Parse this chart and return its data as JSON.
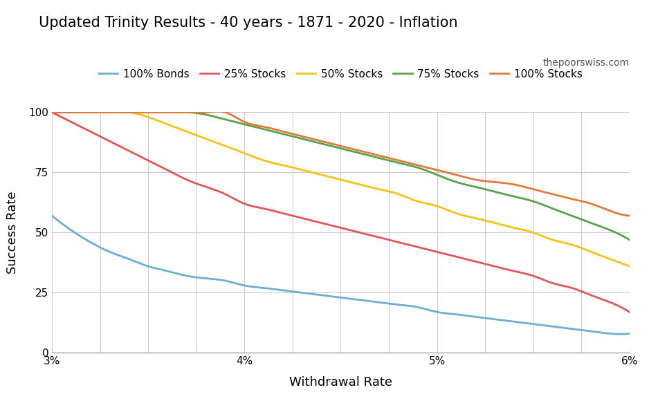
{
  "title": "Updated Trinity Results - 40 years - 1871 - 2020 - Inflation",
  "watermark": "thepoorswiss.com",
  "xlabel": "Withdrawal Rate",
  "ylabel": "Success Rate",
  "xlim": [
    3.0,
    6.0
  ],
  "ylim": [
    0,
    100
  ],
  "background_color": "#ffffff",
  "grid_color": "#cccccc",
  "series": {
    "100% Bonds": {
      "color": "#6baed6",
      "points": [
        [
          3.0,
          57
        ],
        [
          3.1,
          51
        ],
        [
          3.2,
          46
        ],
        [
          3.3,
          42
        ],
        [
          3.4,
          39
        ],
        [
          3.5,
          36
        ],
        [
          3.6,
          34
        ],
        [
          3.7,
          32
        ],
        [
          3.8,
          31
        ],
        [
          3.9,
          30
        ],
        [
          4.0,
          28
        ],
        [
          4.1,
          27
        ],
        [
          4.2,
          26
        ],
        [
          4.3,
          25
        ],
        [
          4.4,
          24
        ],
        [
          4.5,
          23
        ],
        [
          4.6,
          22
        ],
        [
          4.7,
          21
        ],
        [
          4.8,
          20
        ],
        [
          4.9,
          19
        ],
        [
          5.0,
          17
        ],
        [
          5.1,
          16
        ],
        [
          5.2,
          15
        ],
        [
          5.3,
          14
        ],
        [
          5.4,
          13
        ],
        [
          5.5,
          12
        ],
        [
          5.6,
          11
        ],
        [
          5.7,
          10
        ],
        [
          5.8,
          9
        ],
        [
          5.9,
          8
        ],
        [
          6.0,
          8
        ]
      ]
    },
    "25% Stocks": {
      "color": "#e15759",
      "points": [
        [
          3.0,
          100
        ],
        [
          3.1,
          96
        ],
        [
          3.2,
          92
        ],
        [
          3.3,
          88
        ],
        [
          3.4,
          84
        ],
        [
          3.5,
          80
        ],
        [
          3.6,
          76
        ],
        [
          3.7,
          72
        ],
        [
          3.8,
          69
        ],
        [
          3.9,
          66
        ],
        [
          4.0,
          62
        ],
        [
          4.1,
          60
        ],
        [
          4.2,
          58
        ],
        [
          4.3,
          56
        ],
        [
          4.4,
          54
        ],
        [
          4.5,
          52
        ],
        [
          4.6,
          50
        ],
        [
          4.7,
          48
        ],
        [
          4.8,
          46
        ],
        [
          4.9,
          44
        ],
        [
          5.0,
          42
        ],
        [
          5.1,
          40
        ],
        [
          5.2,
          38
        ],
        [
          5.3,
          36
        ],
        [
          5.4,
          34
        ],
        [
          5.5,
          32
        ],
        [
          5.6,
          29
        ],
        [
          5.7,
          27
        ],
        [
          5.8,
          24
        ],
        [
          5.9,
          21
        ],
        [
          6.0,
          17
        ]
      ]
    },
    "50% Stocks": {
      "color": "#f0c419",
      "points": [
        [
          3.0,
          100
        ],
        [
          3.1,
          100
        ],
        [
          3.2,
          100
        ],
        [
          3.3,
          100
        ],
        [
          3.4,
          100
        ],
        [
          3.5,
          98
        ],
        [
          3.6,
          95
        ],
        [
          3.7,
          92
        ],
        [
          3.8,
          89
        ],
        [
          3.9,
          86
        ],
        [
          4.0,
          83
        ],
        [
          4.1,
          80
        ],
        [
          4.2,
          78
        ],
        [
          4.3,
          76
        ],
        [
          4.4,
          74
        ],
        [
          4.5,
          72
        ],
        [
          4.6,
          70
        ],
        [
          4.7,
          68
        ],
        [
          4.8,
          66
        ],
        [
          4.9,
          63
        ],
        [
          5.0,
          61
        ],
        [
          5.1,
          58
        ],
        [
          5.2,
          56
        ],
        [
          5.3,
          54
        ],
        [
          5.4,
          52
        ],
        [
          5.5,
          50
        ],
        [
          5.6,
          47
        ],
        [
          5.7,
          45
        ],
        [
          5.8,
          42
        ],
        [
          5.9,
          39
        ],
        [
          6.0,
          36
        ]
      ]
    },
    "75% Stocks": {
      "color": "#59a14f",
      "points": [
        [
          3.0,
          100
        ],
        [
          3.1,
          100
        ],
        [
          3.2,
          100
        ],
        [
          3.3,
          100
        ],
        [
          3.4,
          100
        ],
        [
          3.5,
          100
        ],
        [
          3.6,
          100
        ],
        [
          3.7,
          100
        ],
        [
          3.8,
          99
        ],
        [
          3.9,
          97
        ],
        [
          4.0,
          95
        ],
        [
          4.1,
          93
        ],
        [
          4.2,
          91
        ],
        [
          4.3,
          89
        ],
        [
          4.4,
          87
        ],
        [
          4.5,
          85
        ],
        [
          4.6,
          83
        ],
        [
          4.7,
          81
        ],
        [
          4.8,
          79
        ],
        [
          4.9,
          77
        ],
        [
          5.0,
          74
        ],
        [
          5.1,
          71
        ],
        [
          5.2,
          69
        ],
        [
          5.3,
          67
        ],
        [
          5.4,
          65
        ],
        [
          5.5,
          63
        ],
        [
          5.6,
          60
        ],
        [
          5.7,
          57
        ],
        [
          5.8,
          54
        ],
        [
          5.9,
          51
        ],
        [
          6.0,
          47
        ]
      ]
    },
    "100% Stocks": {
      "color": "#e07b39",
      "points": [
        [
          3.0,
          100
        ],
        [
          3.1,
          100
        ],
        [
          3.2,
          100
        ],
        [
          3.3,
          100
        ],
        [
          3.4,
          100
        ],
        [
          3.5,
          100
        ],
        [
          3.6,
          100
        ],
        [
          3.7,
          100
        ],
        [
          3.8,
          100
        ],
        [
          3.9,
          100
        ],
        [
          4.0,
          96
        ],
        [
          4.1,
          94
        ],
        [
          4.2,
          92
        ],
        [
          4.3,
          90
        ],
        [
          4.4,
          88
        ],
        [
          4.5,
          86
        ],
        [
          4.6,
          84
        ],
        [
          4.7,
          82
        ],
        [
          4.8,
          80
        ],
        [
          4.9,
          78
        ],
        [
          5.0,
          76
        ],
        [
          5.1,
          74
        ],
        [
          5.2,
          72
        ],
        [
          5.3,
          71
        ],
        [
          5.4,
          70
        ],
        [
          5.5,
          68
        ],
        [
          5.6,
          66
        ],
        [
          5.7,
          64
        ],
        [
          5.8,
          62
        ],
        [
          5.9,
          59
        ],
        [
          6.0,
          57
        ]
      ]
    }
  },
  "legend_order": [
    "100% Bonds",
    "25% Stocks",
    "50% Stocks",
    "75% Stocks",
    "100% Stocks"
  ],
  "xticks": [
    3.0,
    3.25,
    3.5,
    3.75,
    4.0,
    4.25,
    4.5,
    4.75,
    5.0,
    5.25,
    5.5,
    5.75,
    6.0
  ],
  "xtick_labels_show": [
    3.0,
    4.0,
    5.0,
    6.0
  ],
  "yticks": [
    0,
    25,
    50,
    75,
    100
  ]
}
